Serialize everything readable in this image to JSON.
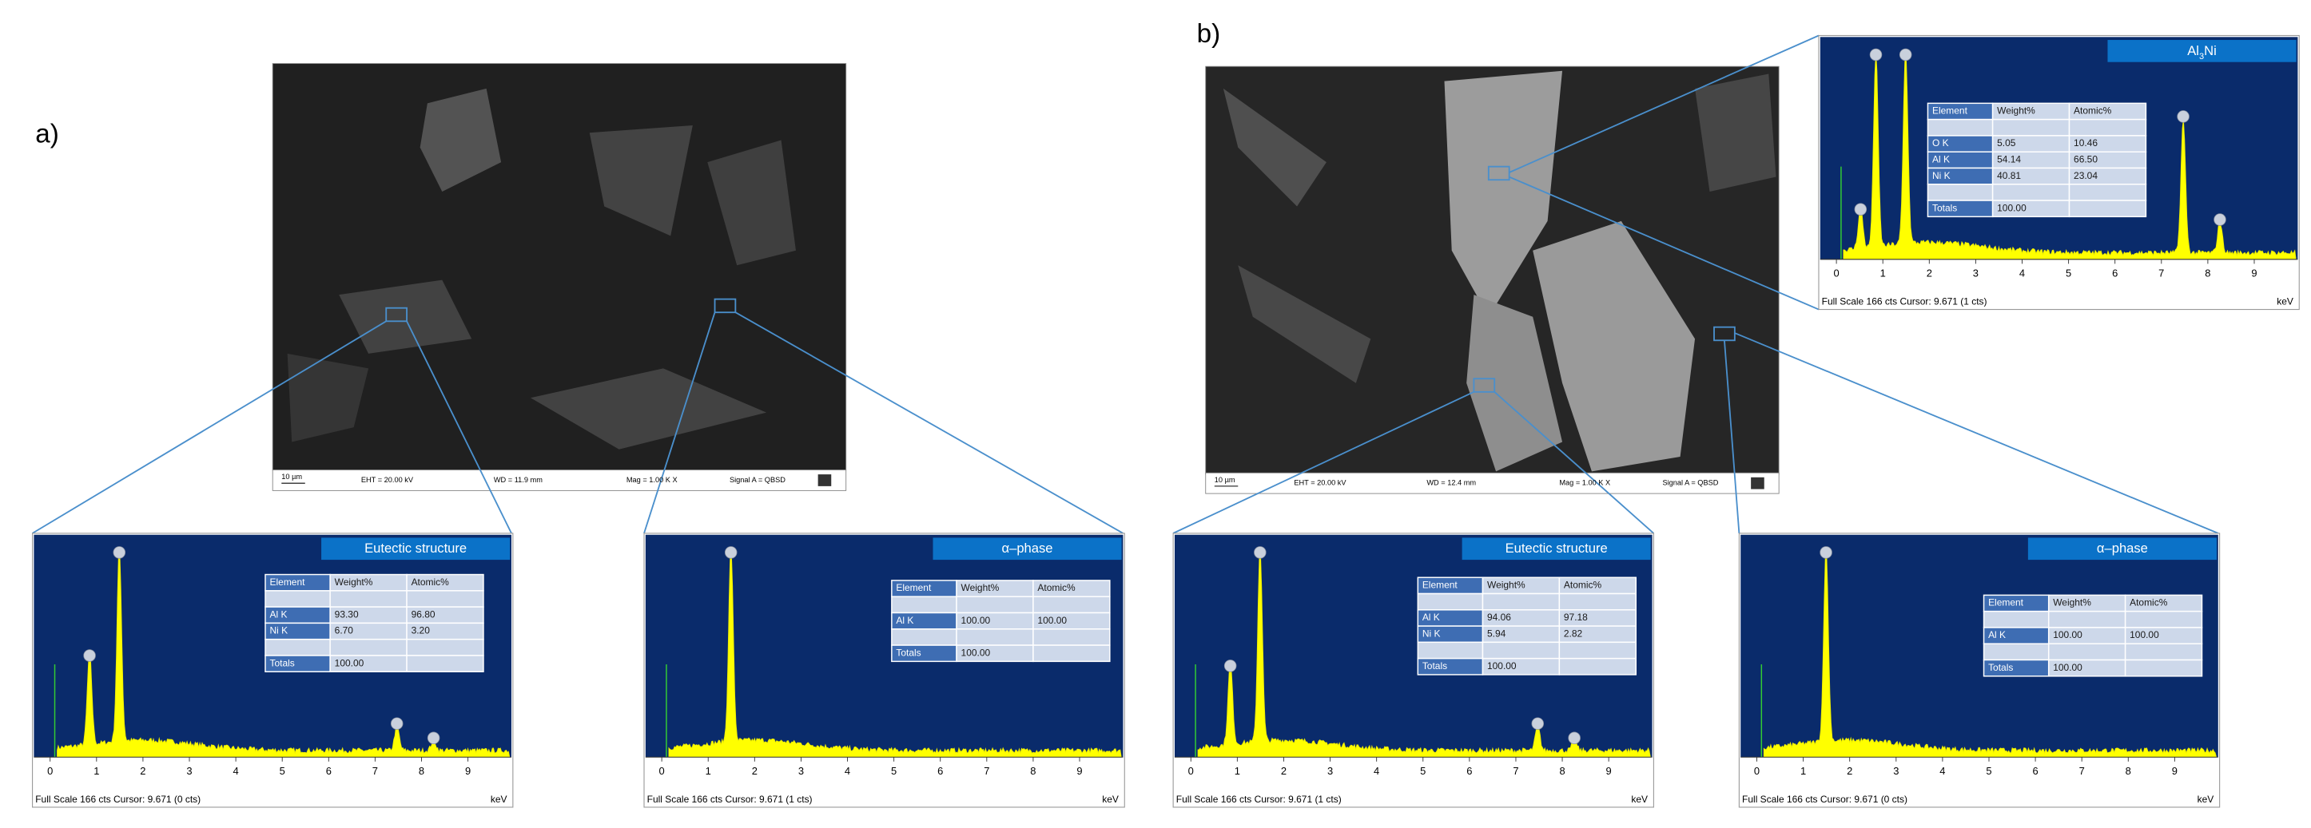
{
  "labels": {
    "a": "a)",
    "b": "b)"
  },
  "sem_images": [
    {
      "scale": "10 µm",
      "eht": "EHT = 20.00 kV",
      "wd": "WD = 11.9 mm",
      "mag": "Mag = 1.00 K X",
      "signal": "Signal A = QBSD"
    },
    {
      "scale": "10 µm",
      "eht": "EHT = 20.00 kV",
      "wd": "WD = 12.4 mm",
      "mag": "Mag = 1.00 K X",
      "signal": "Signal A = QBSD"
    }
  ],
  "axis_ticks": [
    "0",
    "1",
    "2",
    "3",
    "4",
    "5",
    "6",
    "7",
    "8",
    "9"
  ],
  "unit": "keV",
  "spectra": [
    {
      "title_parts": [
        "Eutectic structure"
      ],
      "table": {
        "header": [
          "Element",
          "Weight%",
          "Atomic%"
        ],
        "rows": [
          [
            "Al K",
            "93.30",
            "96.80"
          ],
          [
            "Ni K",
            "6.70",
            "3.20"
          ]
        ],
        "totals": [
          "Totals",
          "100.00"
        ]
      },
      "footer": "Full Scale 166 cts Cursor: 9.671  (0 cts)"
    },
    {
      "title_parts": [
        "α–phase"
      ],
      "table": {
        "header": [
          "Element",
          "Weight%",
          "Atomic%"
        ],
        "rows": [
          [
            "Al K",
            "100.00",
            "100.00"
          ]
        ],
        "totals": [
          "Totals",
          "100.00"
        ]
      },
      "footer": "Full Scale 166 cts Cursor: 9.671  (1 cts)"
    },
    {
      "title_parts": [
        "Eutectic structure"
      ],
      "table": {
        "header": [
          "Element",
          "Weight%",
          "Atomic%"
        ],
        "rows": [
          [
            "Al K",
            "94.06",
            "97.18"
          ],
          [
            "Ni K",
            "5.94",
            "2.82"
          ]
        ],
        "totals": [
          "Totals",
          "100.00"
        ]
      },
      "footer": "Full Scale 166 cts Cursor: 9.671  (1 cts)"
    },
    {
      "title_parts": [
        "α–phase"
      ],
      "table": {
        "header": [
          "Element",
          "Weight%",
          "Atomic%"
        ],
        "rows": [
          [
            "Al K",
            "100.00",
            "100.00"
          ]
        ],
        "totals": [
          "Totals",
          "100.00"
        ]
      },
      "footer": "Full Scale 166 cts Cursor: 9.671  (0 cts)"
    },
    {
      "title_parts": [
        "Al",
        "3",
        "Ni"
      ],
      "table": {
        "header": [
          "Element",
          "Weight%",
          "Atomic%"
        ],
        "rows": [
          [
            "O K",
            "5.05",
            "10.46"
          ],
          [
            "Al K",
            "54.14",
            "66.50"
          ],
          [
            "Ni K",
            "40.81",
            "23.04"
          ]
        ],
        "totals": [
          "Totals",
          "100.00"
        ]
      },
      "footer": "Full Scale 166 cts Cursor: 9.671  (1 cts)"
    }
  ]
}
